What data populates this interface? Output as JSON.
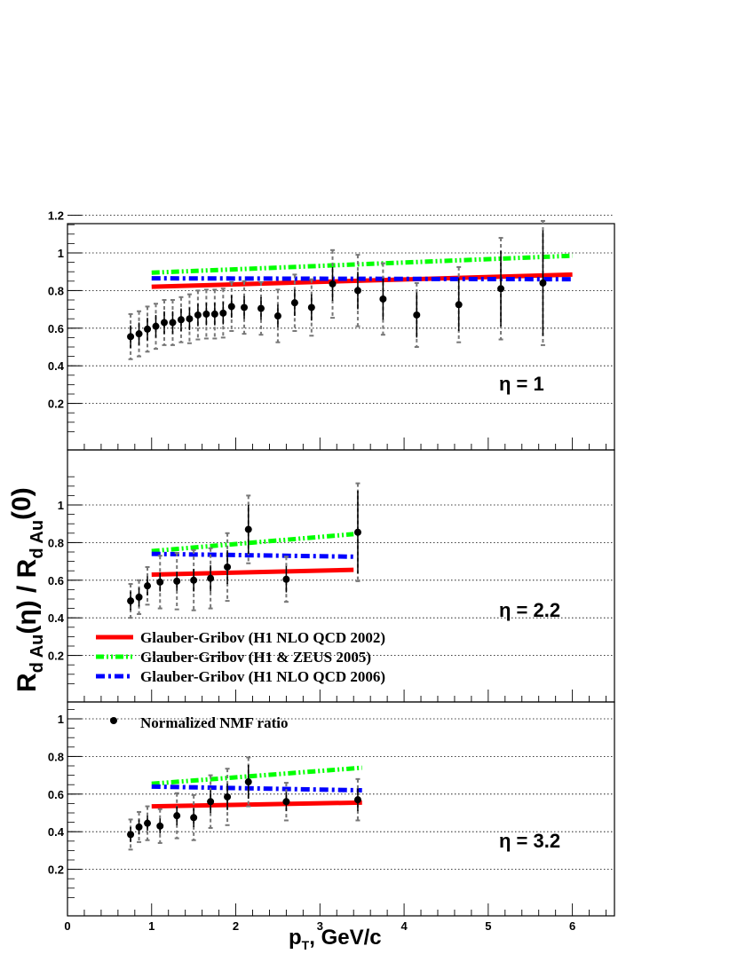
{
  "figure": {
    "ylabel": {
      "R1": "R",
      "sub1": "d Au",
      "mid": "(η) / R",
      "sub2": "d Au",
      "end": "(0)"
    },
    "xlabel": {
      "p": "p",
      "sub": "T",
      "rest": ", GeV/c"
    },
    "legend": [
      {
        "label": "Glauber-Gribov (H1 NLO QCD 2002)",
        "color": "#ff0000",
        "style": "solid"
      },
      {
        "label": "Glauber-Gribov (H1 & ZEUS 2005)",
        "color": "#00ff00",
        "style": "dash-dot-dot"
      },
      {
        "label": "Glauber-Gribov (H1 NLO QCD 2006)",
        "color": "#0000ff",
        "style": "dash-dot"
      },
      {
        "label": "Normalized NMF ratio",
        "color": "#000000",
        "style": "marker"
      }
    ]
  },
  "chart_data": [
    {
      "type": "scatter",
      "annotation": "η = 1",
      "xlim": [
        0,
        6.5
      ],
      "ylim": [
        0,
        1.2
      ],
      "yticks": [
        "0.2",
        "0.4",
        "0.6",
        "0.8",
        "1",
        "1.2"
      ],
      "grid": "horizontal dotted",
      "series": [
        {
          "name": "Normalized NMF ratio",
          "x": [
            0.75,
            0.85,
            0.95,
            1.05,
            1.15,
            1.25,
            1.35,
            1.45,
            1.55,
            1.65,
            1.75,
            1.85,
            1.95,
            2.1,
            2.3,
            2.5,
            2.7,
            2.9,
            3.15,
            3.45,
            3.75,
            4.15,
            4.65,
            5.15,
            5.65
          ],
          "y": [
            0.555,
            0.57,
            0.595,
            0.61,
            0.63,
            0.63,
            0.645,
            0.65,
            0.67,
            0.675,
            0.675,
            0.68,
            0.715,
            0.71,
            0.705,
            0.665,
            0.735,
            0.71,
            0.835,
            0.8,
            0.755,
            0.67,
            0.725,
            0.81,
            0.84
          ],
          "err_stat": [
            0.06,
            0.06,
            0.06,
            0.06,
            0.06,
            0.06,
            0.06,
            0.06,
            0.06,
            0.06,
            0.06,
            0.06,
            0.06,
            0.06,
            0.06,
            0.06,
            0.07,
            0.07,
            0.09,
            0.1,
            0.11,
            0.12,
            0.14,
            0.2,
            0.28
          ],
          "err_sys": [
            0.12,
            0.12,
            0.12,
            0.12,
            0.12,
            0.12,
            0.12,
            0.13,
            0.13,
            0.13,
            0.13,
            0.13,
            0.13,
            0.14,
            0.14,
            0.14,
            0.15,
            0.15,
            0.18,
            0.19,
            0.19,
            0.17,
            0.2,
            0.27,
            0.33
          ]
        },
        {
          "name": "Glauber-Gribov (H1 NLO QCD 2002)",
          "x": [
            1,
            6
          ],
          "y": [
            0.82,
            0.885
          ]
        },
        {
          "name": "Glauber-Gribov (H1 & ZEUS 2005)",
          "x": [
            1,
            6
          ],
          "y": [
            0.895,
            0.985
          ]
        },
        {
          "name": "Glauber-Gribov (H1 NLO QCD 2006)",
          "x": [
            1,
            6
          ],
          "y": [
            0.865,
            0.86
          ]
        }
      ]
    },
    {
      "type": "scatter",
      "annotation": "η = 2.2",
      "xlim": [
        0,
        6.5
      ],
      "ylim": [
        0,
        1.2
      ],
      "yticks": [
        "0.2",
        "0.4",
        "0.6",
        "0.8",
        "1"
      ],
      "grid": "horizontal dotted",
      "series": [
        {
          "name": "Normalized NMF ratio",
          "x": [
            0.75,
            0.85,
            0.95,
            1.1,
            1.3,
            1.5,
            1.7,
            1.9,
            2.15,
            2.6,
            3.45
          ],
          "y": [
            0.49,
            0.51,
            0.57,
            0.59,
            0.595,
            0.6,
            0.61,
            0.67,
            0.87,
            0.605,
            0.855
          ],
          "err_stat": [
            0.05,
            0.05,
            0.05,
            0.05,
            0.05,
            0.06,
            0.07,
            0.09,
            0.13,
            0.07,
            0.22
          ],
          "err_sys": [
            0.09,
            0.09,
            0.1,
            0.14,
            0.15,
            0.16,
            0.16,
            0.18,
            0.18,
            0.12,
            0.26
          ]
        },
        {
          "name": "Glauber-Gribov (H1 NLO QCD 2002)",
          "x": [
            1,
            3.4
          ],
          "y": [
            0.63,
            0.655
          ]
        },
        {
          "name": "Glauber-Gribov (H1 & ZEUS 2005)",
          "x": [
            1,
            3.4
          ],
          "y": [
            0.755,
            0.845
          ]
        },
        {
          "name": "Glauber-Gribov (H1 NLO QCD 2006)",
          "x": [
            1,
            3.4
          ],
          "y": [
            0.74,
            0.725
          ]
        }
      ]
    },
    {
      "type": "scatter",
      "annotation": "η = 3.2",
      "xlim": [
        0,
        6.5
      ],
      "ylim": [
        0,
        1.2
      ],
      "yticks": [
        "0.2",
        "0.4",
        "0.6",
        "0.8",
        "1"
      ],
      "xticks": [
        "0",
        "1",
        "2",
        "3",
        "4",
        "5",
        "6"
      ],
      "grid": "horizontal dotted",
      "series": [
        {
          "name": "Normalized NMF ratio",
          "x": [
            0.75,
            0.85,
            0.95,
            1.1,
            1.3,
            1.5,
            1.7,
            1.9,
            2.15,
            2.6,
            3.45
          ],
          "y": [
            0.385,
            0.425,
            0.445,
            0.43,
            0.485,
            0.475,
            0.56,
            0.585,
            0.665,
            0.56,
            0.57
          ],
          "err_stat": [
            0.04,
            0.04,
            0.04,
            0.04,
            0.05,
            0.05,
            0.06,
            0.07,
            0.09,
            0.05,
            0.06
          ],
          "err_sys": [
            0.08,
            0.08,
            0.09,
            0.09,
            0.12,
            0.12,
            0.14,
            0.15,
            0.13,
            0.1,
            0.11
          ]
        },
        {
          "name": "Glauber-Gribov (H1 NLO QCD 2002)",
          "x": [
            1,
            3.5
          ],
          "y": [
            0.535,
            0.555
          ]
        },
        {
          "name": "Glauber-Gribov (H1 & ZEUS 2005)",
          "x": [
            1,
            3.5
          ],
          "y": [
            0.655,
            0.74
          ]
        },
        {
          "name": "Glauber-Gribov (H1 NLO QCD 2006)",
          "x": [
            1,
            3.5
          ],
          "y": [
            0.64,
            0.62
          ]
        }
      ]
    }
  ]
}
